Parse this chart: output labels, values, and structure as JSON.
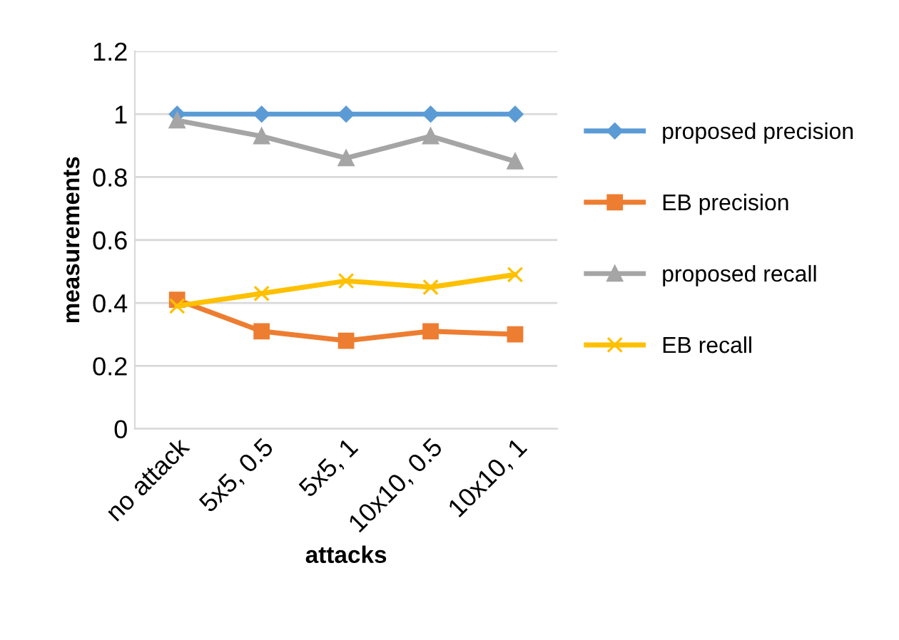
{
  "chart_data": {
    "type": "line",
    "xlabel": "attacks",
    "ylabel": "measurements",
    "categories": [
      "no attack",
      "5x5, 0.5",
      "5x5, 1",
      "10x10, 0.5",
      "10x10, 1"
    ],
    "series": [
      {
        "name": "proposed precision",
        "color": "#5b9bd5",
        "marker": "diamond",
        "values": [
          1,
          1,
          1,
          1,
          1
        ]
      },
      {
        "name": "EB precision",
        "color": "#ed7d31",
        "marker": "square",
        "values": [
          0.41,
          0.31,
          0.28,
          0.31,
          0.3
        ]
      },
      {
        "name": "proposed recall",
        "color": "#a5a5a5",
        "marker": "triangle",
        "values": [
          0.98,
          0.93,
          0.86,
          0.93,
          0.85
        ]
      },
      {
        "name": "EB recall",
        "color": "#ffc000",
        "marker": "cross",
        "values": [
          0.39,
          0.43,
          0.47,
          0.45,
          0.49
        ]
      }
    ],
    "ylim": [
      0,
      1.2
    ],
    "yticks": [
      0,
      0.2,
      0.4,
      0.6,
      0.8,
      1,
      1.2
    ],
    "grid": "y",
    "legend": "right"
  }
}
